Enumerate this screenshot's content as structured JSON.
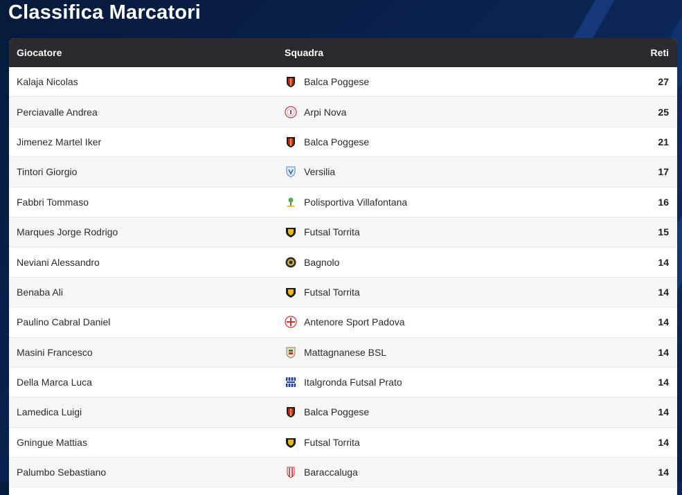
{
  "page": {
    "title": "Classifica Marcatori"
  },
  "table": {
    "headers": {
      "player": "Giocatore",
      "team": "Squadra",
      "goals": "Reti"
    },
    "rows": [
      {
        "player": "Kalaja Nicolas",
        "team": "Balca Poggese",
        "goals": "27",
        "logo": "balca-poggese-crest-icon"
      },
      {
        "player": "Perciavalle Andrea",
        "team": "Arpi Nova",
        "goals": "25",
        "logo": "arpi-nova-crest-icon"
      },
      {
        "player": "Jimenez Martel Iker",
        "team": "Balca Poggese",
        "goals": "21",
        "logo": "balca-poggese-crest-icon"
      },
      {
        "player": "Tintori Giorgio",
        "team": "Versilia",
        "goals": "17",
        "logo": "versilia-crest-icon"
      },
      {
        "player": "Fabbri Tommaso",
        "team": "Polisportiva Villafontana",
        "goals": "16",
        "logo": "villafontana-crest-icon"
      },
      {
        "player": "Marques Jorge Rodrigo",
        "team": "Futsal Torrita",
        "goals": "15",
        "logo": "futsal-torrita-crest-icon"
      },
      {
        "player": "Neviani Alessandro",
        "team": "Bagnolo",
        "goals": "14",
        "logo": "bagnolo-crest-icon"
      },
      {
        "player": "Benaba Ali",
        "team": "Futsal Torrita",
        "goals": "14",
        "logo": "futsal-torrita-crest-icon"
      },
      {
        "player": "Paulino Cabral Daniel",
        "team": "Antenore Sport Padova",
        "goals": "14",
        "logo": "antenore-crest-icon"
      },
      {
        "player": "Masini Francesco",
        "team": "Mattagnanese BSL",
        "goals": "14",
        "logo": "mattagnanese-crest-icon"
      },
      {
        "player": "Della Marca Luca",
        "team": "Italgronda Futsal Prato",
        "goals": "14",
        "logo": "italgronda-crest-icon"
      },
      {
        "player": "Lamedica Luigi",
        "team": "Balca Poggese",
        "goals": "14",
        "logo": "balca-poggese-crest-icon"
      },
      {
        "player": "Gningue Mattias",
        "team": "Futsal Torrita",
        "goals": "14",
        "logo": "futsal-torrita-crest-icon"
      },
      {
        "player": "Palumbo Sebastiano",
        "team": "Baraccaluga",
        "goals": "14",
        "logo": "baraccaluga-crest-icon"
      }
    ]
  },
  "colors": {
    "header_bg": "#2b2b2f",
    "page_bg": "#0a2350",
    "row_alt": "#f6f6f7"
  }
}
